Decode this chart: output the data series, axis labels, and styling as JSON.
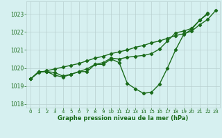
{
  "x": [
    0,
    1,
    2,
    3,
    4,
    5,
    6,
    7,
    8,
    9,
    10,
    11,
    12,
    13,
    14,
    15,
    16,
    17,
    18,
    19,
    20,
    21,
    22,
    23
  ],
  "line_wavy": [
    1019.4,
    1019.8,
    1019.8,
    1019.6,
    1019.5,
    1019.65,
    1019.8,
    1019.8,
    1020.2,
    1020.2,
    1020.5,
    1020.3,
    1019.15,
    1018.85,
    1018.6,
    1018.65,
    1019.1,
    1020.0,
    1021.0,
    1021.85,
    1022.15,
    1022.65,
    1023.0,
    null
  ],
  "line_straight": [
    1019.4,
    1019.75,
    1019.85,
    1019.95,
    1020.05,
    1020.15,
    1020.25,
    1020.4,
    1020.55,
    1020.65,
    1020.8,
    1020.9,
    1021.0,
    1021.15,
    1021.25,
    1021.4,
    1021.5,
    1021.65,
    1021.8,
    1021.9,
    1022.05,
    1022.4,
    1022.7,
    1023.2
  ],
  "line_mid": [
    1019.4,
    1019.8,
    1019.8,
    1019.75,
    1019.55,
    1019.65,
    1019.8,
    1019.95,
    1020.2,
    1020.3,
    1020.55,
    1020.5,
    1020.6,
    1020.65,
    1020.7,
    1020.8,
    1021.05,
    1021.5,
    1021.95,
    1022.05,
    1022.2,
    1022.65,
    1023.05,
    null
  ],
  "ylim": [
    1017.8,
    1023.7
  ],
  "xlim": [
    -0.5,
    23.5
  ],
  "yticks": [
    1018,
    1019,
    1020,
    1021,
    1022,
    1023
  ],
  "xticks": [
    0,
    1,
    2,
    3,
    4,
    5,
    6,
    7,
    8,
    9,
    10,
    11,
    12,
    13,
    14,
    15,
    16,
    17,
    18,
    19,
    20,
    21,
    22,
    23
  ],
  "line_color": "#1a6b1a",
  "bg_color": "#d6f0f0",
  "grid_color": "#b8d0d0",
  "xlabel": "Graphe pression niveau de la mer (hPa)",
  "xlabel_color": "#1a6b1a",
  "marker": "D",
  "marker_size": 2.2,
  "line_width": 1.0
}
